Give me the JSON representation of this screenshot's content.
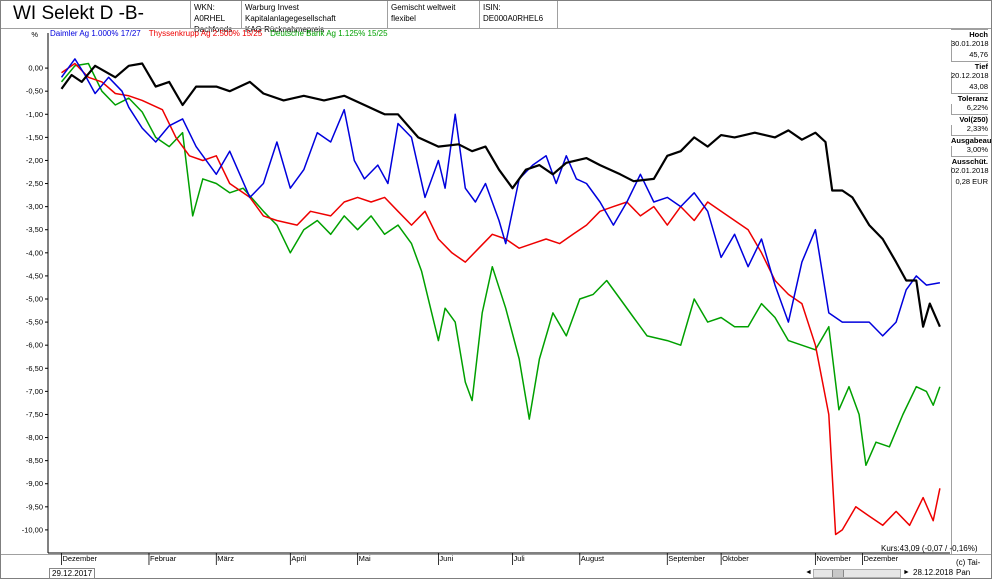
{
  "title": "WI Selekt D -B-",
  "header_cells": [
    {
      "line1": "WKN: A0RHEL",
      "line2": "Dachfonds"
    },
    {
      "line1": "Warburg Invest Kapitalanlagegesellschaft",
      "line2": "KAG Rücknahmepreis"
    },
    {
      "line1": "Gemischt weltweit flexibel",
      "line2": ""
    },
    {
      "line1": "ISIN: DE000A0RHEL6",
      "line2": ""
    }
  ],
  "stats": [
    {
      "label": "Hoch",
      "values": [
        "30.01.2018",
        "45,76"
      ]
    },
    {
      "label": "Tief",
      "values": [
        "20.12.2018",
        "43,08"
      ]
    },
    {
      "label": "Toleranz",
      "values": [
        "6,22%"
      ]
    },
    {
      "label": "Vol(250)",
      "values": [
        "2,33%"
      ]
    },
    {
      "label": "Ausgabeau",
      "values": [
        "3,00%"
      ]
    },
    {
      "label": "Ausschüt.",
      "values": [
        "02.01.2018",
        "0,28 EUR"
      ]
    }
  ],
  "footer": {
    "kurs": "Kurs:43,09 (-0,07 / -0,16%)",
    "start_date": "29.12.2017",
    "end_date": "28.12.2018",
    "copyright": "(c) Tai-Pan",
    "scroll_left": "◄",
    "scroll_right": "►"
  },
  "chart_data": {
    "type": "line",
    "ylabel": "%",
    "ylim": [
      -10.5,
      0.5
    ],
    "yticks": [
      "0,00",
      "-0,50",
      "-1,00",
      "-1,50",
      "-2,00",
      "-2,50",
      "-3,00",
      "-3,50",
      "-4,00",
      "-4,50",
      "-5,00",
      "-5,50",
      "-6,00",
      "-6,50",
      "-7,00",
      "-7,50",
      "-8,00",
      "-8,50",
      "-9,00",
      "-9,50",
      "-10,00"
    ],
    "grid": false,
    "xlim": [
      -0.2,
      12.4
    ],
    "months": [
      "Dezember",
      "Februar",
      "März",
      "April",
      "Mai",
      "Juni",
      "Juli",
      "August",
      "September",
      "Oktober",
      "November",
      "Dezember"
    ],
    "month_pos": [
      0,
      1.3,
      2.3,
      3.4,
      4.4,
      5.6,
      6.7,
      7.7,
      9.0,
      9.8,
      11.2,
      11.9
    ],
    "legend": [
      {
        "text": "Daimler Ag 1.000% 17/27",
        "color": "#0000dd"
      },
      {
        "text": "Thyssenkrupp Ag 2.500% 15/25",
        "color": "#ee0000"
      },
      {
        "text": "Deutsche Bank Ag 1.125% 15/25",
        "color": "#00a000"
      }
    ],
    "series": [
      {
        "name": "WI Selekt D -B-",
        "color": "#000000",
        "width": 2.2,
        "points": [
          [
            0,
            -0.45
          ],
          [
            0.15,
            -0.15
          ],
          [
            0.3,
            -0.3
          ],
          [
            0.5,
            0.05
          ],
          [
            0.8,
            -0.2
          ],
          [
            1.0,
            0.05
          ],
          [
            1.2,
            0.1
          ],
          [
            1.4,
            -0.4
          ],
          [
            1.6,
            -0.3
          ],
          [
            1.8,
            -0.8
          ],
          [
            2.0,
            -0.4
          ],
          [
            2.3,
            -0.4
          ],
          [
            2.5,
            -0.5
          ],
          [
            2.8,
            -0.3
          ],
          [
            3.0,
            -0.55
          ],
          [
            3.3,
            -0.7
          ],
          [
            3.6,
            -0.6
          ],
          [
            3.9,
            -0.7
          ],
          [
            4.2,
            -0.6
          ],
          [
            4.5,
            -0.8
          ],
          [
            4.8,
            -1.0
          ],
          [
            5.0,
            -1.0
          ],
          [
            5.3,
            -1.5
          ],
          [
            5.6,
            -1.7
          ],
          [
            5.9,
            -1.65
          ],
          [
            6.1,
            -1.8
          ],
          [
            6.3,
            -1.7
          ],
          [
            6.5,
            -2.2
          ],
          [
            6.7,
            -2.6
          ],
          [
            6.9,
            -2.2
          ],
          [
            7.1,
            -2.1
          ],
          [
            7.3,
            -2.3
          ],
          [
            7.5,
            -2.05
          ],
          [
            7.8,
            -1.95
          ],
          [
            8.0,
            -2.1
          ],
          [
            8.3,
            -2.3
          ],
          [
            8.5,
            -2.45
          ],
          [
            8.8,
            -2.4
          ],
          [
            9.0,
            -1.9
          ],
          [
            9.2,
            -1.8
          ],
          [
            9.4,
            -1.5
          ],
          [
            9.6,
            -1.7
          ],
          [
            9.8,
            -1.45
          ],
          [
            10.0,
            -1.5
          ],
          [
            10.3,
            -1.4
          ],
          [
            10.6,
            -1.5
          ],
          [
            10.8,
            -1.35
          ],
          [
            11.0,
            -1.55
          ],
          [
            11.2,
            -1.4
          ],
          [
            11.35,
            -1.6
          ],
          [
            11.45,
            -2.65
          ],
          [
            11.6,
            -2.65
          ],
          [
            11.75,
            -2.8
          ],
          [
            12.0,
            -3.4
          ],
          [
            12.2,
            -3.7
          ],
          [
            12.4,
            -4.2
          ],
          [
            12.55,
            -4.6
          ],
          [
            12.7,
            -4.6
          ],
          [
            12.8,
            -5.6
          ],
          [
            12.9,
            -5.1
          ],
          [
            13.05,
            -5.6
          ]
        ]
      },
      {
        "name": "Daimler Ag 1.000% 17/27",
        "color": "#0000dd",
        "width": 1.5,
        "points": [
          [
            0,
            -0.2
          ],
          [
            0.2,
            0.2
          ],
          [
            0.35,
            -0.15
          ],
          [
            0.5,
            -0.55
          ],
          [
            0.7,
            -0.2
          ],
          [
            0.9,
            -0.5
          ],
          [
            1.0,
            -0.85
          ],
          [
            1.2,
            -1.3
          ],
          [
            1.4,
            -1.6
          ],
          [
            1.6,
            -1.25
          ],
          [
            1.8,
            -1.1
          ],
          [
            2.0,
            -1.7
          ],
          [
            2.3,
            -2.3
          ],
          [
            2.5,
            -1.8
          ],
          [
            2.8,
            -2.8
          ],
          [
            3.0,
            -2.5
          ],
          [
            3.2,
            -1.6
          ],
          [
            3.4,
            -2.6
          ],
          [
            3.6,
            -2.2
          ],
          [
            3.8,
            -1.4
          ],
          [
            4.0,
            -1.6
          ],
          [
            4.2,
            -0.9
          ],
          [
            4.35,
            -2.0
          ],
          [
            4.5,
            -2.4
          ],
          [
            4.7,
            -2.1
          ],
          [
            4.85,
            -2.5
          ],
          [
            5.0,
            -1.2
          ],
          [
            5.2,
            -1.5
          ],
          [
            5.4,
            -2.8
          ],
          [
            5.6,
            -2.0
          ],
          [
            5.7,
            -2.6
          ],
          [
            5.85,
            -1.0
          ],
          [
            6.0,
            -2.6
          ],
          [
            6.15,
            -2.9
          ],
          [
            6.3,
            -2.5
          ],
          [
            6.5,
            -3.3
          ],
          [
            6.6,
            -3.8
          ],
          [
            6.8,
            -2.4
          ],
          [
            7.0,
            -2.1
          ],
          [
            7.2,
            -1.9
          ],
          [
            7.35,
            -2.5
          ],
          [
            7.5,
            -1.9
          ],
          [
            7.65,
            -2.4
          ],
          [
            7.8,
            -2.5
          ],
          [
            8.0,
            -2.9
          ],
          [
            8.2,
            -3.4
          ],
          [
            8.4,
            -2.9
          ],
          [
            8.6,
            -2.3
          ],
          [
            8.8,
            -2.9
          ],
          [
            9.0,
            -2.8
          ],
          [
            9.2,
            -3.0
          ],
          [
            9.4,
            -2.7
          ],
          [
            9.6,
            -3.1
          ],
          [
            9.8,
            -4.1
          ],
          [
            10.0,
            -3.6
          ],
          [
            10.2,
            -4.3
          ],
          [
            10.4,
            -3.7
          ],
          [
            10.6,
            -4.7
          ],
          [
            10.8,
            -5.5
          ],
          [
            11.0,
            -4.2
          ],
          [
            11.2,
            -3.5
          ],
          [
            11.4,
            -5.3
          ],
          [
            11.6,
            -5.5
          ],
          [
            11.8,
            -5.5
          ],
          [
            12.0,
            -5.5
          ],
          [
            12.2,
            -5.8
          ],
          [
            12.4,
            -5.5
          ],
          [
            12.55,
            -4.8
          ],
          [
            12.7,
            -4.5
          ],
          [
            12.85,
            -4.7
          ],
          [
            13.05,
            -4.65
          ]
        ]
      },
      {
        "name": "Thyssenkrupp Ag 2.500% 15/25",
        "color": "#ee0000",
        "width": 1.5,
        "points": [
          [
            0,
            -0.1
          ],
          [
            0.2,
            0.1
          ],
          [
            0.4,
            -0.2
          ],
          [
            0.6,
            -0.3
          ],
          [
            0.8,
            -0.55
          ],
          [
            1.0,
            -0.6
          ],
          [
            1.2,
            -0.7
          ],
          [
            1.5,
            -0.9
          ],
          [
            1.7,
            -1.5
          ],
          [
            1.9,
            -1.9
          ],
          [
            2.1,
            -2.0
          ],
          [
            2.3,
            -1.9
          ],
          [
            2.5,
            -2.5
          ],
          [
            2.8,
            -2.8
          ],
          [
            3.0,
            -3.2
          ],
          [
            3.2,
            -3.3
          ],
          [
            3.5,
            -3.4
          ],
          [
            3.7,
            -3.1
          ],
          [
            4.0,
            -3.2
          ],
          [
            4.2,
            -2.9
          ],
          [
            4.4,
            -2.8
          ],
          [
            4.6,
            -2.9
          ],
          [
            4.8,
            -2.8
          ],
          [
            5.0,
            -3.1
          ],
          [
            5.2,
            -3.4
          ],
          [
            5.4,
            -3.1
          ],
          [
            5.6,
            -3.7
          ],
          [
            5.8,
            -4.0
          ],
          [
            6.0,
            -4.2
          ],
          [
            6.2,
            -3.9
          ],
          [
            6.4,
            -3.6
          ],
          [
            6.6,
            -3.7
          ],
          [
            6.8,
            -3.9
          ],
          [
            7.0,
            -3.8
          ],
          [
            7.2,
            -3.7
          ],
          [
            7.4,
            -3.8
          ],
          [
            7.6,
            -3.6
          ],
          [
            7.8,
            -3.4
          ],
          [
            8.0,
            -3.1
          ],
          [
            8.2,
            -3.0
          ],
          [
            8.4,
            -2.9
          ],
          [
            8.6,
            -3.2
          ],
          [
            8.8,
            -3.0
          ],
          [
            9.0,
            -3.4
          ],
          [
            9.2,
            -3.0
          ],
          [
            9.4,
            -3.3
          ],
          [
            9.6,
            -2.9
          ],
          [
            9.8,
            -3.1
          ],
          [
            10.0,
            -3.3
          ],
          [
            10.2,
            -3.5
          ],
          [
            10.4,
            -4.0
          ],
          [
            10.6,
            -4.6
          ],
          [
            10.8,
            -4.9
          ],
          [
            11.0,
            -5.1
          ],
          [
            11.2,
            -6.0
          ],
          [
            11.4,
            -7.5
          ],
          [
            11.5,
            -10.1
          ],
          [
            11.6,
            -10.0
          ],
          [
            11.8,
            -9.5
          ],
          [
            12.0,
            -9.7
          ],
          [
            12.2,
            -9.9
          ],
          [
            12.4,
            -9.6
          ],
          [
            12.6,
            -9.9
          ],
          [
            12.8,
            -9.3
          ],
          [
            12.95,
            -9.8
          ],
          [
            13.05,
            -9.1
          ]
        ]
      },
      {
        "name": "Deutsche Bank Ag 1.125% 15/25",
        "color": "#00a000",
        "width": 1.5,
        "points": [
          [
            0,
            -0.3
          ],
          [
            0.2,
            0.05
          ],
          [
            0.4,
            0.1
          ],
          [
            0.6,
            -0.5
          ],
          [
            0.8,
            -0.8
          ],
          [
            1.0,
            -0.65
          ],
          [
            1.2,
            -0.95
          ],
          [
            1.4,
            -1.5
          ],
          [
            1.6,
            -1.7
          ],
          [
            1.8,
            -1.4
          ],
          [
            1.95,
            -3.2
          ],
          [
            2.1,
            -2.4
          ],
          [
            2.3,
            -2.5
          ],
          [
            2.5,
            -2.7
          ],
          [
            2.7,
            -2.6
          ],
          [
            3.0,
            -3.1
          ],
          [
            3.2,
            -3.4
          ],
          [
            3.4,
            -4.0
          ],
          [
            3.6,
            -3.5
          ],
          [
            3.8,
            -3.3
          ],
          [
            4.0,
            -3.6
          ],
          [
            4.2,
            -3.2
          ],
          [
            4.4,
            -3.5
          ],
          [
            4.6,
            -3.2
          ],
          [
            4.8,
            -3.6
          ],
          [
            5.0,
            -3.4
          ],
          [
            5.2,
            -3.8
          ],
          [
            5.35,
            -4.4
          ],
          [
            5.5,
            -5.3
          ],
          [
            5.6,
            -5.9
          ],
          [
            5.7,
            -5.2
          ],
          [
            5.85,
            -5.5
          ],
          [
            6.0,
            -6.8
          ],
          [
            6.1,
            -7.2
          ],
          [
            6.25,
            -5.3
          ],
          [
            6.4,
            -4.3
          ],
          [
            6.6,
            -5.2
          ],
          [
            6.8,
            -6.3
          ],
          [
            6.95,
            -7.6
          ],
          [
            7.1,
            -6.3
          ],
          [
            7.3,
            -5.3
          ],
          [
            7.5,
            -5.8
          ],
          [
            7.7,
            -5.0
          ],
          [
            7.9,
            -4.9
          ],
          [
            8.1,
            -4.6
          ],
          [
            8.3,
            -5.0
          ],
          [
            8.5,
            -5.4
          ],
          [
            8.7,
            -5.8
          ],
          [
            9.0,
            -5.9
          ],
          [
            9.2,
            -6.0
          ],
          [
            9.4,
            -5.0
          ],
          [
            9.6,
            -5.5
          ],
          [
            9.8,
            -5.4
          ],
          [
            10.0,
            -5.6
          ],
          [
            10.2,
            -5.6
          ],
          [
            10.4,
            -5.1
          ],
          [
            10.6,
            -5.4
          ],
          [
            10.8,
            -5.9
          ],
          [
            11.0,
            -6.0
          ],
          [
            11.2,
            -6.1
          ],
          [
            11.4,
            -5.6
          ],
          [
            11.55,
            -7.4
          ],
          [
            11.7,
            -6.9
          ],
          [
            11.85,
            -7.5
          ],
          [
            11.95,
            -8.6
          ],
          [
            12.1,
            -8.1
          ],
          [
            12.3,
            -8.2
          ],
          [
            12.5,
            -7.5
          ],
          [
            12.7,
            -6.9
          ],
          [
            12.85,
            -7.0
          ],
          [
            12.95,
            -7.3
          ],
          [
            13.05,
            -6.9
          ]
        ]
      }
    ]
  }
}
